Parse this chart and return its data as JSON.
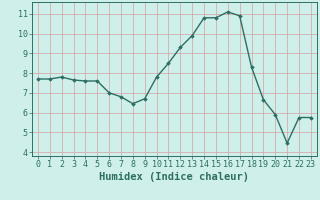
{
  "x": [
    0,
    1,
    2,
    3,
    4,
    5,
    6,
    7,
    8,
    9,
    10,
    11,
    12,
    13,
    14,
    15,
    16,
    17,
    18,
    19,
    20,
    21,
    22,
    23
  ],
  "y": [
    7.7,
    7.7,
    7.8,
    7.65,
    7.6,
    7.6,
    7.0,
    6.8,
    6.45,
    6.7,
    7.8,
    8.5,
    9.3,
    9.9,
    10.8,
    10.8,
    11.1,
    10.9,
    8.3,
    6.65,
    5.9,
    4.45,
    5.75,
    5.75
  ],
  "xlim": [
    -0.5,
    23.5
  ],
  "ylim": [
    3.8,
    11.6
  ],
  "yticks": [
    4,
    5,
    6,
    7,
    8,
    9,
    10,
    11
  ],
  "xticks": [
    0,
    1,
    2,
    3,
    4,
    5,
    6,
    7,
    8,
    9,
    10,
    11,
    12,
    13,
    14,
    15,
    16,
    17,
    18,
    19,
    20,
    21,
    22,
    23
  ],
  "xlabel": "Humidex (Indice chaleur)",
  "line_color": "#2d6e63",
  "marker": "D",
  "marker_size": 1.8,
  "line_width": 1.0,
  "bg_color": "#cff0ea",
  "grid_color_major": "#d4a0a0",
  "grid_color_minor": "#e8c8c8",
  "text_color": "#2d6e63",
  "xlabel_fontsize": 7.5,
  "tick_fontsize": 6.0
}
